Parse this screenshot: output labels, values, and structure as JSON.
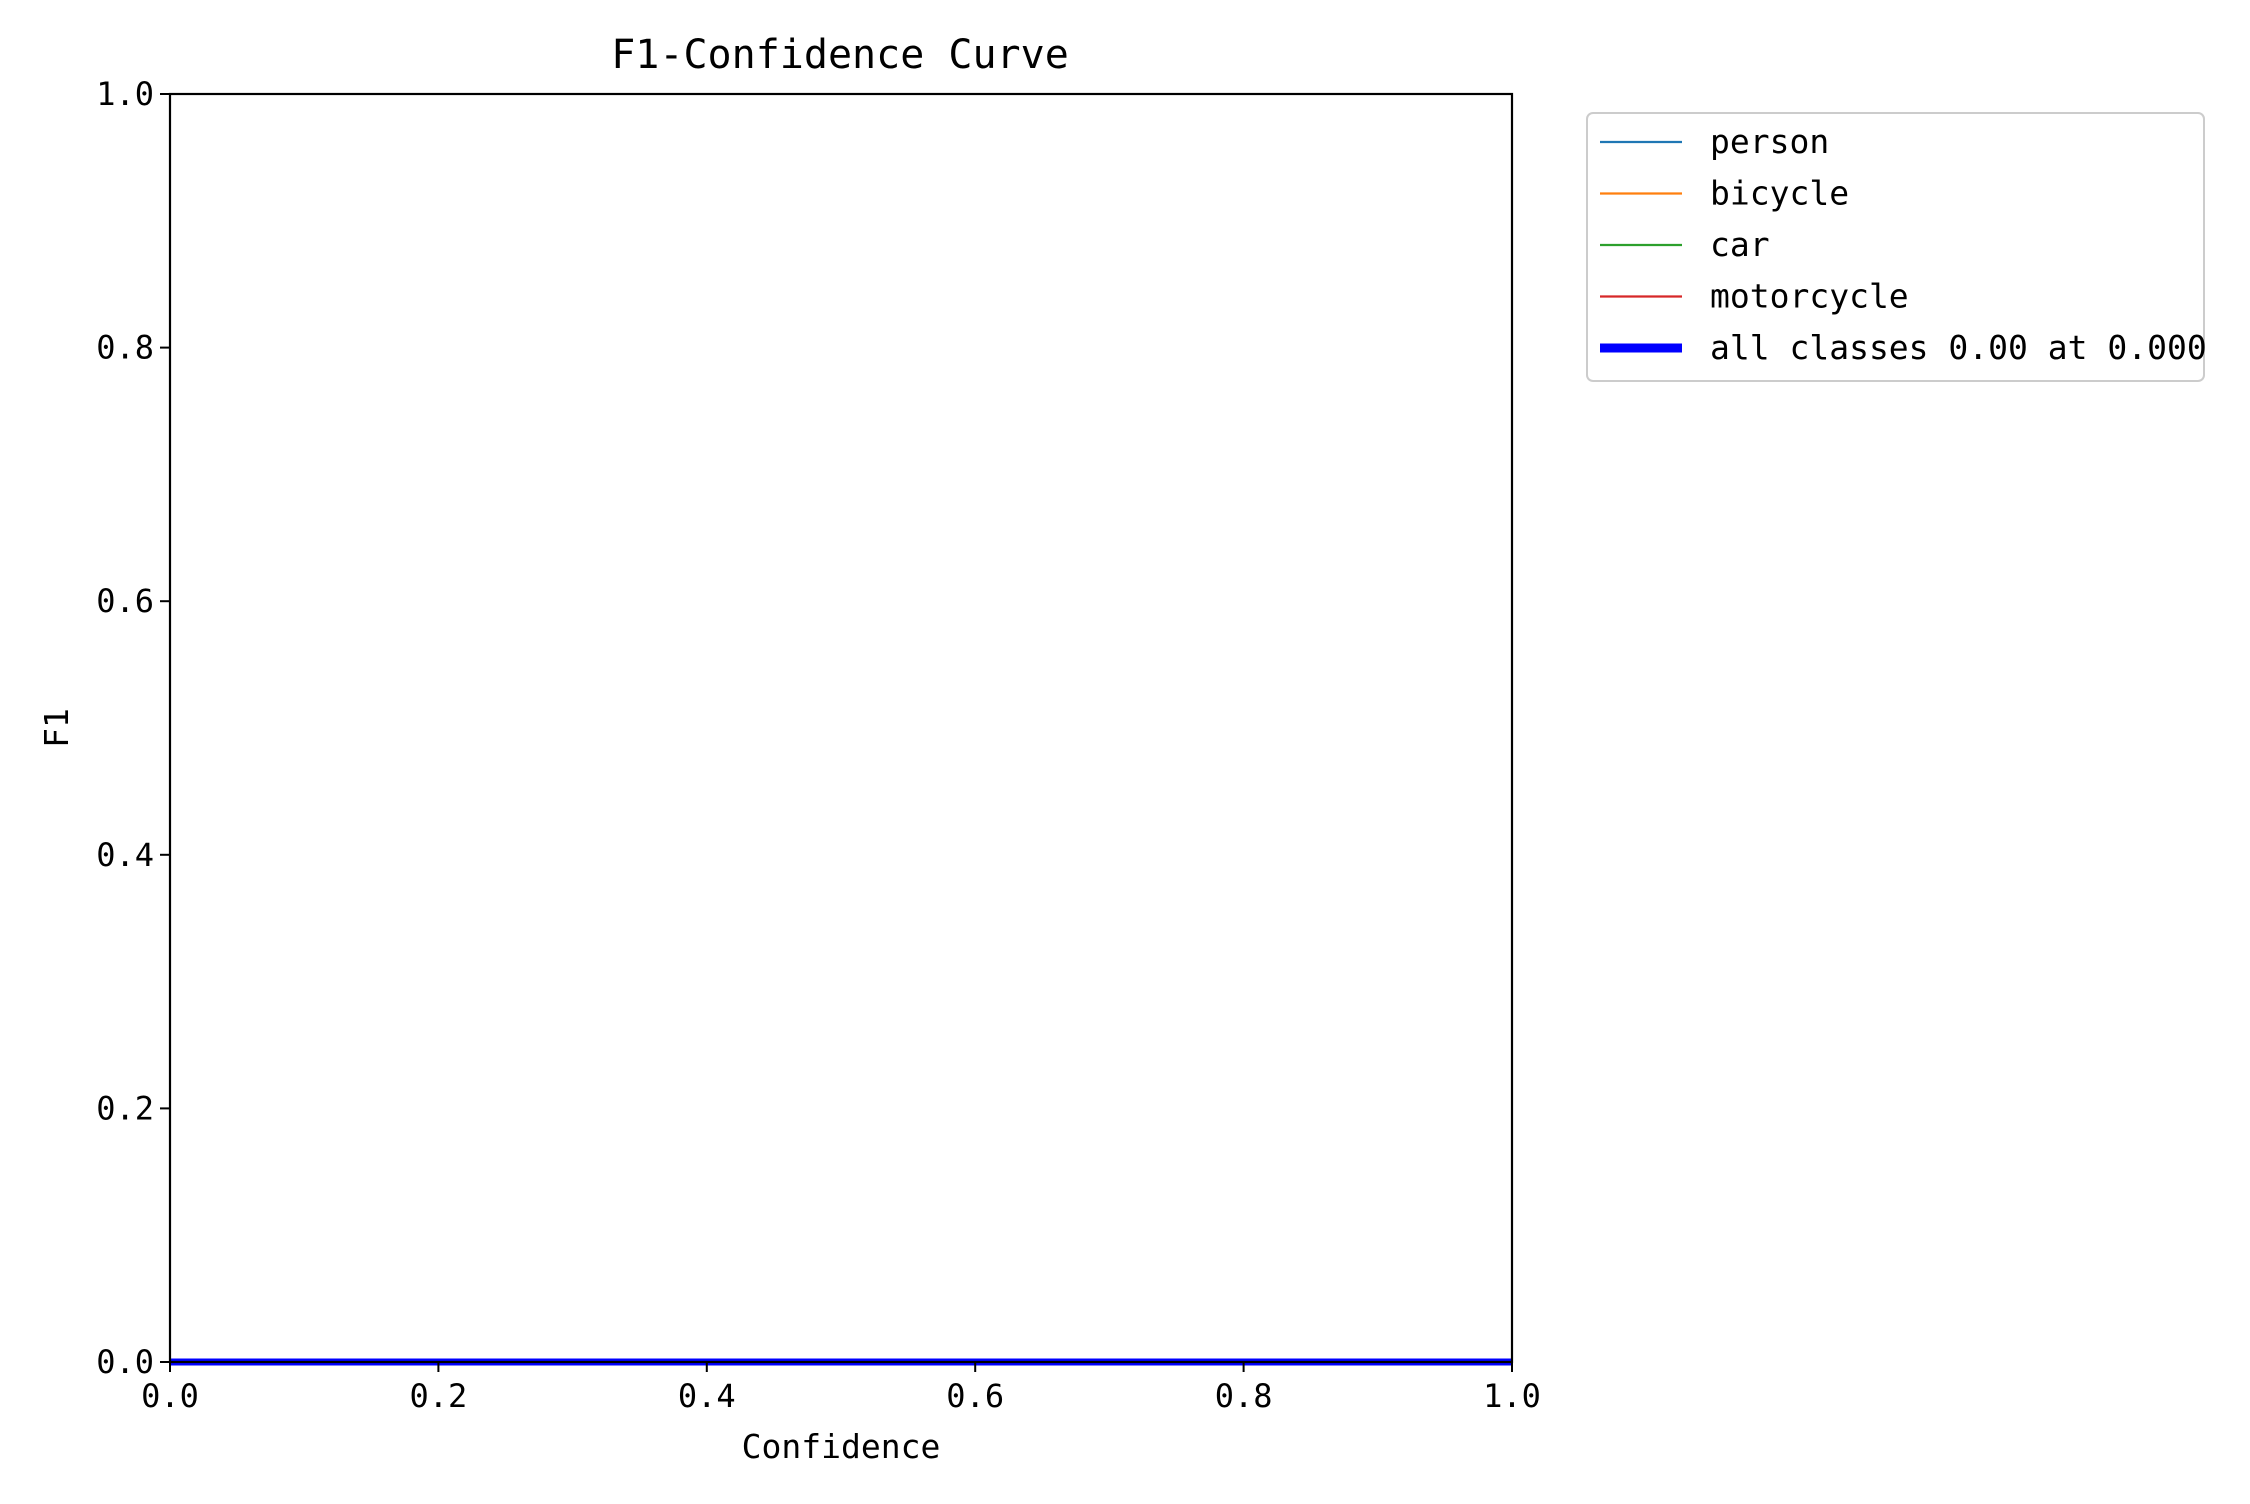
{
  "chart_data": {
    "type": "line",
    "title": "F1-Confidence Curve",
    "xlabel": "Confidence",
    "ylabel": "F1",
    "xlim": [
      0,
      1
    ],
    "ylim": [
      0,
      1
    ],
    "x_ticks": [
      0.0,
      0.2,
      0.4,
      0.6,
      0.8,
      1.0
    ],
    "y_ticks": [
      0.0,
      0.2,
      0.4,
      0.6,
      0.8,
      1.0
    ],
    "x_tick_labels": [
      "0.0",
      "0.2",
      "0.4",
      "0.6",
      "0.8",
      "1.0"
    ],
    "y_tick_labels": [
      "0.0",
      "0.2",
      "0.4",
      "0.6",
      "0.8",
      "1.0"
    ],
    "grid": false,
    "legend_placement": "outside-top-right",
    "series": [
      {
        "name": "person",
        "color": "#1f77b4",
        "emphasis": "thin",
        "x": [
          0,
          1
        ],
        "y": [
          0,
          0
        ]
      },
      {
        "name": "bicycle",
        "color": "#ff7f0e",
        "emphasis": "thin",
        "x": [
          0,
          1
        ],
        "y": [
          0,
          0
        ]
      },
      {
        "name": "car",
        "color": "#2ca02c",
        "emphasis": "thin",
        "x": [
          0,
          1
        ],
        "y": [
          0,
          0
        ]
      },
      {
        "name": "motorcycle",
        "color": "#d62728",
        "emphasis": "thin",
        "x": [
          0,
          1
        ],
        "y": [
          0,
          0
        ]
      },
      {
        "name": "all classes 0.00 at 0.000",
        "color": "#0000ff",
        "emphasis": "thick",
        "x": [
          0,
          1
        ],
        "y": [
          0,
          0
        ]
      }
    ]
  }
}
